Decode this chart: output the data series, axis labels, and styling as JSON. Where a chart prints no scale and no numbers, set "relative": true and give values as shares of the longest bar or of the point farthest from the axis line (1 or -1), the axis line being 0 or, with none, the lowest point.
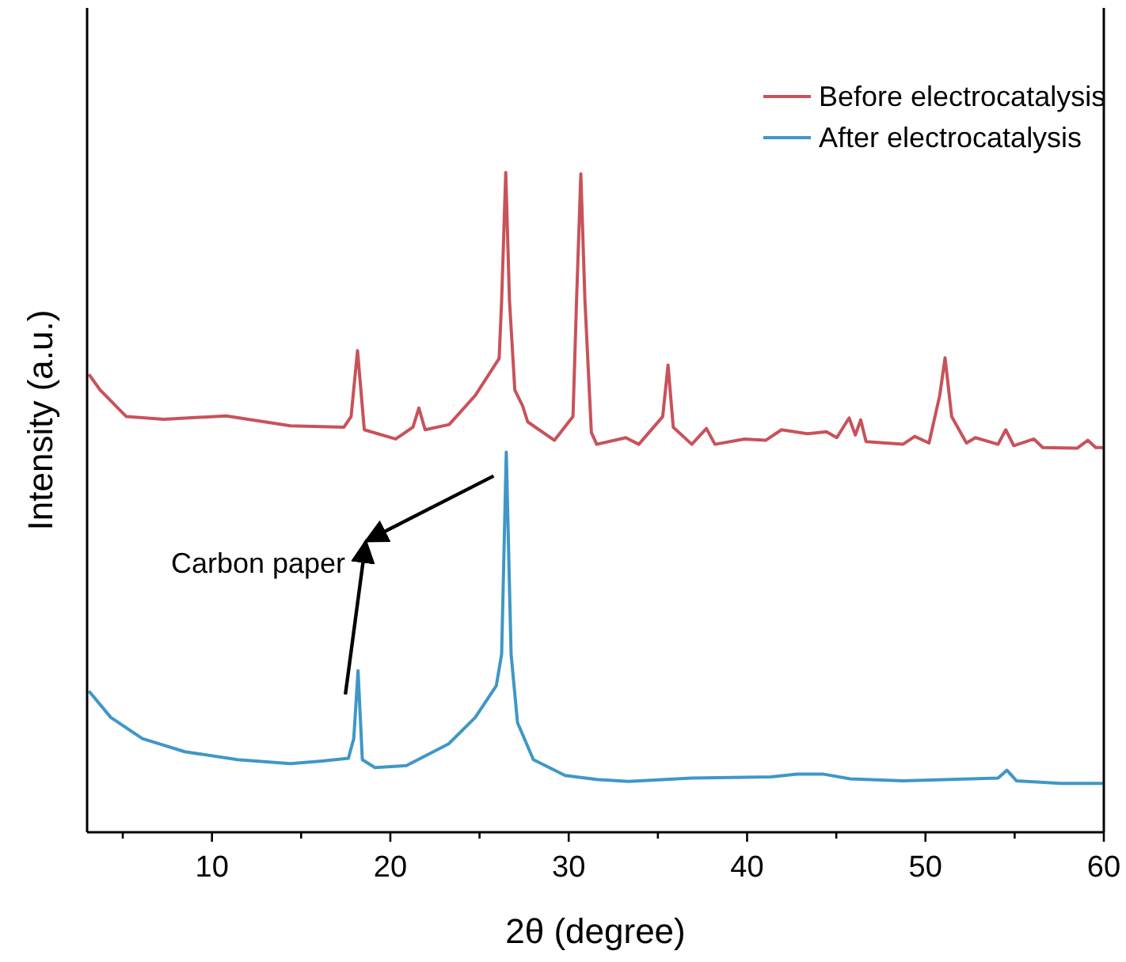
{
  "chart_data": {
    "type": "line",
    "relative": true,
    "xlabel": "2θ (degree)",
    "ylabel": "Intensity (a.u.)",
    "xlim": [
      3,
      60
    ],
    "xticks": [
      {
        "value": 5,
        "label": null
      },
      10,
      {
        "value": 15,
        "label": null
      },
      20,
      {
        "value": 25,
        "label": null
      },
      30,
      {
        "value": 35,
        "label": null
      },
      40,
      {
        "value": 45,
        "label": null
      },
      50,
      {
        "value": 55,
        "label": null
      },
      60
    ],
    "legend": "top right",
    "grid": false,
    "marker": "none",
    "line_style": "solid",
    "annotations": [
      "Carbon paper"
    ],
    "series": [
      {
        "name": "Before electrocatalysis",
        "color": "#c8525a",
        "x": [
          3.1,
          3.74,
          5.2,
          7.3,
          10.8,
          14.4,
          17.4,
          17.8,
          18.16,
          18.54,
          20.3,
          21.27,
          21.6,
          21.95,
          23.3,
          24.76,
          26.1,
          26.24,
          26.47,
          26.68,
          26.98,
          27.42,
          27.7,
          29.2,
          30.24,
          30.44,
          30.68,
          30.91,
          31.27,
          31.57,
          33.2,
          33.93,
          35.27,
          35.57,
          35.86,
          36.9,
          37.72,
          38.2,
          39.86,
          41.04,
          41.93,
          43.4,
          44.45,
          45.03,
          45.72,
          46.07,
          46.37,
          46.67,
          48.74,
          49.4,
          50.2,
          50.8,
          51.1,
          51.47,
          52.3,
          52.8,
          54.07,
          54.5,
          54.95,
          56.08,
          56.58,
          58.5,
          59.1,
          59.55,
          60
        ],
        "values": [
          0.694,
          0.67,
          0.63,
          0.626,
          0.631,
          0.616,
          0.614,
          0.63,
          0.73,
          0.61,
          0.596,
          0.614,
          0.643,
          0.61,
          0.618,
          0.662,
          0.718,
          0.806,
          1,
          0.806,
          0.67,
          0.646,
          0.622,
          0.594,
          0.63,
          0.806,
          0.998,
          0.806,
          0.606,
          0.588,
          0.598,
          0.588,
          0.63,
          0.708,
          0.614,
          0.588,
          0.612,
          0.588,
          0.596,
          0.594,
          0.61,
          0.604,
          0.607,
          0.598,
          0.628,
          0.602,
          0.625,
          0.592,
          0.588,
          0.6,
          0.59,
          0.662,
          0.719,
          0.63,
          0.59,
          0.598,
          0.588,
          0.61,
          0.586,
          0.596,
          0.583,
          0.582,
          0.594,
          0.583,
          0.583
        ]
      },
      {
        "name": "After electrocatalysis",
        "color": "#3f97c6",
        "x": [
          3.1,
          4.33,
          6.1,
          8.48,
          11.44,
          14.4,
          16.17,
          17.65,
          17.95,
          18.19,
          18.43,
          19.14,
          20.9,
          23.27,
          24.76,
          25.94,
          26.24,
          26.5,
          26.77,
          27.13,
          28.02,
          29.8,
          31.57,
          33.35,
          36.9,
          41.34,
          42.8,
          44.3,
          45.78,
          48.74,
          54.07,
          54.57,
          55.1,
          57.6,
          60
        ],
        "values": [
          0.214,
          0.174,
          0.142,
          0.122,
          0.11,
          0.104,
          0.108,
          0.112,
          0.142,
          0.245,
          0.11,
          0.098,
          0.101,
          0.134,
          0.174,
          0.222,
          0.27,
          0.576,
          0.27,
          0.166,
          0.11,
          0.086,
          0.08,
          0.077,
          0.082,
          0.084,
          0.088,
          0.088,
          0.081,
          0.078,
          0.082,
          0.094,
          0.078,
          0.074,
          0.074
        ]
      }
    ]
  }
}
